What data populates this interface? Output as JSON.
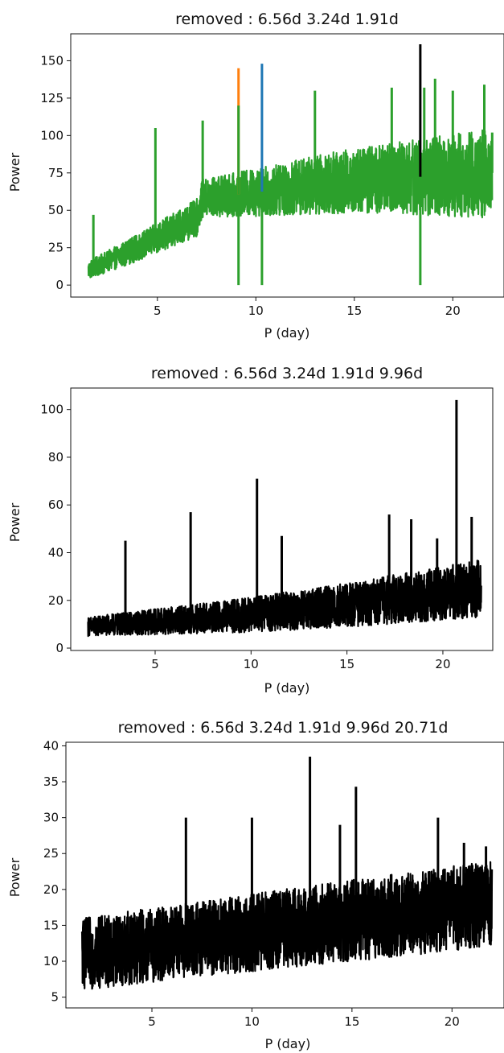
{
  "chart_data": [
    {
      "type": "line",
      "title": "removed : 6.56d 3.24d 1.91d",
      "xlabel": "P (day)",
      "ylabel": "Power",
      "xlim": [
        0.6,
        22.6
      ],
      "ylim": [
        -8,
        168
      ],
      "xticks": [
        "5",
        "10",
        "15",
        "20"
      ],
      "xtick_values": [
        5,
        10,
        15,
        20
      ],
      "yticks": [
        "0",
        "25",
        "50",
        "75",
        "100",
        "125",
        "150"
      ],
      "ytick_values": [
        0,
        25,
        50,
        75,
        100,
        125,
        150
      ],
      "grid": false,
      "colors": {
        "orange": "#ff7f0e",
        "blue": "#1f77b4",
        "black": "#000000",
        "green": "#2ca02c"
      },
      "x_range": [
        1.5,
        22
      ],
      "baseline": [
        {
          "x": 1.5,
          "y": 10
        },
        {
          "x": 4,
          "y": 25
        },
        {
          "x": 7,
          "y": 45
        },
        {
          "x": 7.3,
          "y": 58
        },
        {
          "x": 10,
          "y": 62
        },
        {
          "x": 15,
          "y": 70
        },
        {
          "x": 22,
          "y": 75
        }
      ],
      "band_half_width": [
        6,
        30
      ],
      "dips": [
        {
          "x": 9.12,
          "y": 0
        },
        {
          "x": 10.31,
          "y": 0
        },
        {
          "x": 18.35,
          "y": 0
        }
      ],
      "series": [
        {
          "color": "#ff7f0e",
          "values": [
            {
              "x": 9.12,
              "y": 145
            }
          ]
        },
        {
          "color": "#1f77b4",
          "values": [
            {
              "x": 10.31,
              "y": 148
            }
          ]
        },
        {
          "color": "#000000",
          "values": [
            {
              "x": 18.35,
              "y": 161
            }
          ]
        },
        {
          "color": "#2ca02c",
          "values": [
            {
              "x": 1.75,
              "y": 47
            },
            {
              "x": 4.9,
              "y": 105
            },
            {
              "x": 7.3,
              "y": 110
            },
            {
              "x": 9.12,
              "y": 120
            },
            {
              "x": 13.0,
              "y": 130
            },
            {
              "x": 16.9,
              "y": 132
            },
            {
              "x": 18.55,
              "y": 132
            },
            {
              "x": 19.1,
              "y": 138
            },
            {
              "x": 20.0,
              "y": 130
            },
            {
              "x": 21.6,
              "y": 134
            },
            {
              "x": 22.0,
              "y": 102
            }
          ]
        }
      ]
    },
    {
      "type": "line",
      "title": "removed : 6.56d 3.24d 1.91d 9.96d",
      "xlabel": "P (day)",
      "ylabel": "Power",
      "xlim": [
        0.6,
        22.6
      ],
      "ylim": [
        -1,
        109
      ],
      "xticks": [
        "5",
        "10",
        "15",
        "20"
      ],
      "xtick_values": [
        5,
        10,
        15,
        20
      ],
      "yticks": [
        "0",
        "20",
        "40",
        "60",
        "80",
        "100"
      ],
      "ytick_values": [
        0,
        20,
        40,
        60,
        80,
        100
      ],
      "grid": false,
      "colors": {
        "line": "#000000"
      },
      "x_range": [
        1.5,
        22
      ],
      "baseline": [
        {
          "x": 1.5,
          "y": 9
        },
        {
          "x": 10,
          "y": 14
        },
        {
          "x": 15,
          "y": 18
        },
        {
          "x": 22,
          "y": 25
        }
      ],
      "band_half_width": [
        4,
        12
      ],
      "dips": [],
      "series": [
        {
          "color": "#000000",
          "values": [
            {
              "x": 3.45,
              "y": 45
            },
            {
              "x": 6.85,
              "y": 57
            },
            {
              "x": 10.31,
              "y": 71
            },
            {
              "x": 11.6,
              "y": 47
            },
            {
              "x": 17.2,
              "y": 56
            },
            {
              "x": 18.35,
              "y": 54
            },
            {
              "x": 19.7,
              "y": 46
            },
            {
              "x": 20.71,
              "y": 104
            },
            {
              "x": 21.5,
              "y": 55
            }
          ]
        }
      ]
    },
    {
      "type": "line",
      "title": "removed : 6.56d 3.24d 1.91d 9.96d 20.71d",
      "xlabel": "P (day)",
      "ylabel": "Power",
      "xlim": [
        0.7,
        22.6
      ],
      "ylim": [
        3.5,
        40.5
      ],
      "xticks": [
        "5",
        "10",
        "15",
        "20"
      ],
      "xtick_values": [
        5,
        10,
        15,
        20
      ],
      "yticks": [
        "5",
        "10",
        "15",
        "20",
        "25",
        "30",
        "35",
        "40"
      ],
      "ytick_values": [
        5,
        10,
        15,
        20,
        25,
        30,
        35,
        40
      ],
      "grid": false,
      "colors": {
        "line": "#000000"
      },
      "x_range": [
        1.5,
        22
      ],
      "baseline": [
        {
          "x": 1.5,
          "y": 11
        },
        {
          "x": 10,
          "y": 14
        },
        {
          "x": 16,
          "y": 16
        },
        {
          "x": 22,
          "y": 18
        }
      ],
      "band_half_width": [
        5,
        6
      ],
      "dips": [],
      "series": [
        {
          "color": "#000000",
          "values": [
            {
              "x": 6.7,
              "y": 30
            },
            {
              "x": 10.0,
              "y": 30
            },
            {
              "x": 12.9,
              "y": 38.5
            },
            {
              "x": 14.4,
              "y": 29
            },
            {
              "x": 15.2,
              "y": 34.3
            },
            {
              "x": 19.3,
              "y": 30
            },
            {
              "x": 20.6,
              "y": 26.5
            },
            {
              "x": 21.7,
              "y": 26
            }
          ]
        }
      ]
    }
  ]
}
